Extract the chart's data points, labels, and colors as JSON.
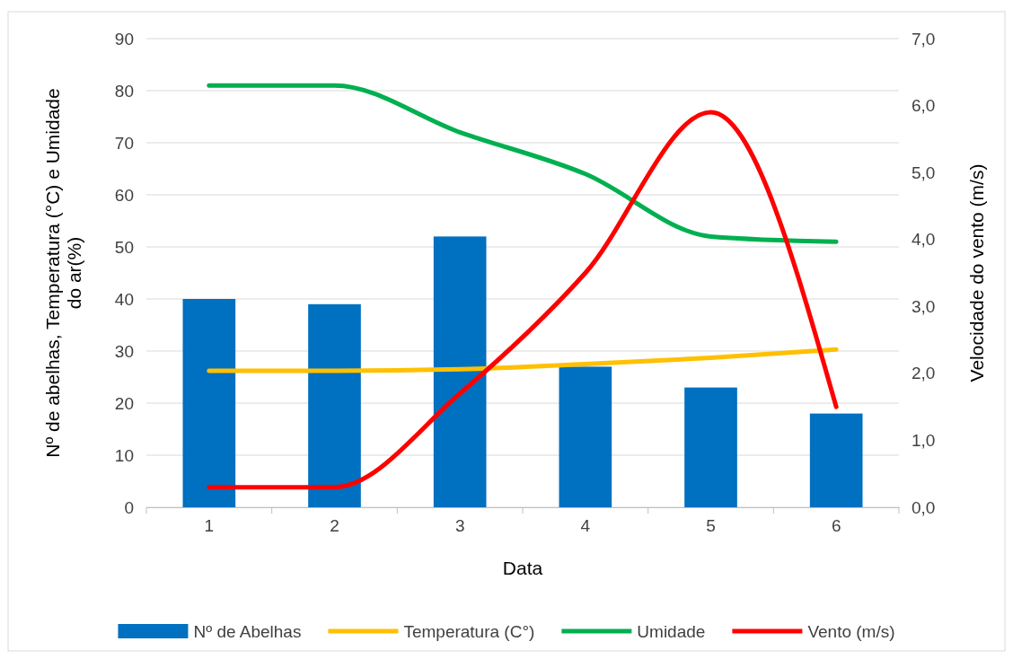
{
  "chart_data": {
    "type": "bar",
    "xlabel": "Data",
    "ylabel": "Nº de abelhas, Temperatura (°C) e  Umidade do ar(%)",
    "y2label": "Velocidade do vento (m/s)",
    "categories": [
      "1",
      "2",
      "3",
      "4",
      "5",
      "6"
    ],
    "series": [
      {
        "name": "Nº de Abelhas",
        "color": "#0070c0",
        "values": [
          40,
          39,
          52,
          27,
          23,
          18
        ]
      },
      {
        "name": "Temperatura (C°)",
        "type": "line",
        "color": "#ffc000",
        "values": [
          26.2,
          26.2,
          26.5,
          27.5,
          28.7,
          30.3
        ]
      },
      {
        "name": "Umidade",
        "type": "line",
        "color": "#00b050",
        "values": [
          81,
          81,
          72,
          64,
          52,
          51
        ]
      },
      {
        "name": "Vento (m/s)",
        "type": "line",
        "color": "#ff0000",
        "axis": "y2",
        "values": [
          0.3,
          0.3,
          1.7,
          3.5,
          5.9,
          1.5
        ]
      }
    ],
    "ylim": [
      0,
      90
    ],
    "yticks": [
      0,
      10,
      20,
      30,
      40,
      50,
      60,
      70,
      80,
      90
    ],
    "y2lim": [
      0,
      7
    ],
    "y2ticks": [
      {
        "value": 0,
        "label": "0,0"
      },
      {
        "value": 1,
        "label": "1,0"
      },
      {
        "value": 2,
        "label": "2,0"
      },
      {
        "value": 3,
        "label": "3,0"
      },
      {
        "value": 4,
        "label": "4,0"
      },
      {
        "value": 5,
        "label": "5,0"
      },
      {
        "value": 6,
        "label": "6,0"
      },
      {
        "value": 7,
        "label": "7,0"
      }
    ],
    "grid": "y",
    "legend": "bottom",
    "line_style": "solid",
    "marker": "none"
  }
}
